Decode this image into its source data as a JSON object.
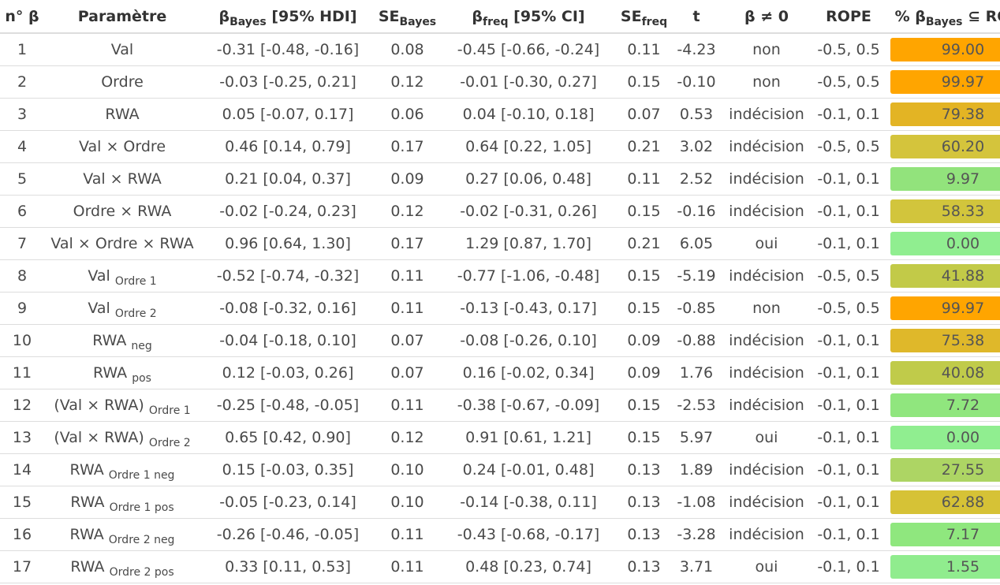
{
  "header": {
    "n": "n° β",
    "param": "Paramètre",
    "beta_bayes": {
      "main": "β",
      "sub": "Bayes",
      "rest": " [95% HDI]"
    },
    "se_bayes": {
      "main": "SE",
      "sub": "Bayes"
    },
    "beta_freq": {
      "main": "β",
      "sub": "freq",
      "rest": " [95% CI]"
    },
    "se_freq": {
      "main": "SE",
      "sub": "freq"
    },
    "t": "t",
    "diff": "β ≠ 0",
    "rope": "ROPE",
    "pct": {
      "pre": "% β",
      "sub": "Bayes",
      "rest": " ⊆ ROPE"
    }
  },
  "rows": [
    {
      "n": "1",
      "param": "Val",
      "psub": "",
      "beta_bayes": "-0.31 [-0.48, -0.16]",
      "se_bayes": "0.08",
      "beta_freq": "-0.45 [-0.66, -0.24]",
      "se_freq": "0.11",
      "t": "-4.23",
      "diff": "non",
      "rope": "-0.5, 0.5",
      "pct": "99.00",
      "color": "#ffa500"
    },
    {
      "n": "2",
      "param": "Ordre",
      "psub": "",
      "beta_bayes": "-0.03 [-0.25, 0.21]",
      "se_bayes": "0.12",
      "beta_freq": "-0.01 [-0.30, 0.27]",
      "se_freq": "0.15",
      "t": "-0.10",
      "diff": "non",
      "rope": "-0.5, 0.5",
      "pct": "99.97",
      "color": "#ffa500"
    },
    {
      "n": "3",
      "param": "RWA",
      "psub": "",
      "beta_bayes": "0.05 [-0.07, 0.17]",
      "se_bayes": "0.06",
      "beta_freq": "0.04 [-0.10, 0.18]",
      "se_freq": "0.07",
      "t": "0.53",
      "diff": "indécision",
      "rope": "-0.1, 0.1",
      "pct": "79.38",
      "color": "#e3b424"
    },
    {
      "n": "4",
      "param": "Val × Ordre",
      "psub": "",
      "beta_bayes": "0.46 [0.14, 0.79]",
      "se_bayes": "0.17",
      "beta_freq": "0.64 [0.22, 1.05]",
      "se_freq": "0.21",
      "t": "3.02",
      "diff": "indécision",
      "rope": "-0.5, 0.5",
      "pct": "60.20",
      "color": "#d4c43c"
    },
    {
      "n": "5",
      "param": "Val × RWA",
      "psub": "",
      "beta_bayes": "0.21 [0.04, 0.37]",
      "se_bayes": "0.09",
      "beta_freq": "0.27 [0.06, 0.48]",
      "se_freq": "0.11",
      "t": "2.52",
      "diff": "indécision",
      "rope": "-0.1, 0.1",
      "pct": "9.97",
      "color": "#92e37c"
    },
    {
      "n": "6",
      "param": "Ordre × RWA",
      "psub": "",
      "beta_bayes": "-0.02 [-0.24, 0.23]",
      "se_bayes": "0.12",
      "beta_freq": "-0.02 [-0.31, 0.26]",
      "se_freq": "0.15",
      "t": "-0.16",
      "diff": "indécision",
      "rope": "-0.1, 0.1",
      "pct": "58.33",
      "color": "#d2c53c"
    },
    {
      "n": "7",
      "param": "Val × Ordre × RWA",
      "psub": "",
      "beta_bayes": "0.96 [0.64, 1.30]",
      "se_bayes": "0.17",
      "beta_freq": "1.29 [0.87, 1.70]",
      "se_freq": "0.21",
      "t": "6.05",
      "diff": "oui",
      "rope": "-0.1, 0.1",
      "pct": "0.00",
      "color": "#90ee90"
    },
    {
      "n": "8",
      "param": "Val",
      "psub": "Ordre 1",
      "beta_bayes": "-0.52 [-0.74, -0.32]",
      "se_bayes": "0.11",
      "beta_freq": "-0.77 [-1.06, -0.48]",
      "se_freq": "0.15",
      "t": "-5.19",
      "diff": "indécision",
      "rope": "-0.5, 0.5",
      "pct": "41.88",
      "color": "#c2ca48"
    },
    {
      "n": "9",
      "param": "Val",
      "psub": "Ordre 2",
      "beta_bayes": "-0.08 [-0.32, 0.16]",
      "se_bayes": "0.11",
      "beta_freq": "-0.13 [-0.43, 0.17]",
      "se_freq": "0.15",
      "t": "-0.85",
      "diff": "non",
      "rope": "-0.5, 0.5",
      "pct": "99.97",
      "color": "#ffa500"
    },
    {
      "n": "10",
      "param": "RWA",
      "psub": "neg",
      "beta_bayes": "-0.04 [-0.18, 0.10]",
      "se_bayes": "0.07",
      "beta_freq": "-0.08 [-0.26, 0.10]",
      "se_freq": "0.09",
      "t": "-0.88",
      "diff": "indécision",
      "rope": "-0.1, 0.1",
      "pct": "75.38",
      "color": "#dfb82a"
    },
    {
      "n": "11",
      "param": "RWA",
      "psub": "pos",
      "beta_bayes": "0.12 [-0.03, 0.26]",
      "se_bayes": "0.07",
      "beta_freq": "0.16 [-0.02, 0.34]",
      "se_freq": "0.09",
      "t": "1.76",
      "diff": "indécision",
      "rope": "-0.1, 0.1",
      "pct": "40.08",
      "color": "#c0cb4a"
    },
    {
      "n": "12",
      "param": "(Val × RWA)",
      "psub": "Ordre 1",
      "beta_bayes": "-0.25 [-0.48, -0.05]",
      "se_bayes": "0.11",
      "beta_freq": "-0.38 [-0.67, -0.09]",
      "se_freq": "0.15",
      "t": "-2.53",
      "diff": "indécision",
      "rope": "-0.1, 0.1",
      "pct": "7.72",
      "color": "#90e67e"
    },
    {
      "n": "13",
      "param": "(Val × RWA)",
      "psub": "Ordre 2",
      "beta_bayes": "0.65 [0.42, 0.90]",
      "se_bayes": "0.12",
      "beta_freq": "0.91 [0.61, 1.21]",
      "se_freq": "0.15",
      "t": "5.97",
      "diff": "oui",
      "rope": "-0.1, 0.1",
      "pct": "0.00",
      "color": "#90ee90"
    },
    {
      "n": "14",
      "param": "RWA",
      "psub": "Ordre 1 neg",
      "beta_bayes": "0.15 [-0.03, 0.35]",
      "se_bayes": "0.10",
      "beta_freq": "0.24 [-0.01, 0.48]",
      "se_freq": "0.13",
      "t": "1.89",
      "diff": "indécision",
      "rope": "-0.1, 0.1",
      "pct": "27.55",
      "color": "#add564"
    },
    {
      "n": "15",
      "param": "RWA",
      "psub": "Ordre 1 pos",
      "beta_bayes": "-0.05 [-0.23, 0.14]",
      "se_bayes": "0.10",
      "beta_freq": "-0.14 [-0.38, 0.11]",
      "se_freq": "0.13",
      "t": "-1.08",
      "diff": "indécision",
      "rope": "-0.1, 0.1",
      "pct": "62.88",
      "color": "#d6c236"
    },
    {
      "n": "16",
      "param": "RWA",
      "psub": "Ordre 2 neg",
      "beta_bayes": "-0.26 [-0.46, -0.05]",
      "se_bayes": "0.11",
      "beta_freq": "-0.43 [-0.68, -0.17]",
      "se_freq": "0.13",
      "t": "-3.28",
      "diff": "indécision",
      "rope": "-0.1, 0.1",
      "pct": "7.17",
      "color": "#8fe77e"
    },
    {
      "n": "17",
      "param": "RWA",
      "psub": "Ordre 2 pos",
      "beta_bayes": "0.33 [0.11, 0.53]",
      "se_bayes": "0.11",
      "beta_freq": "0.48 [0.23, 0.74]",
      "se_freq": "0.13",
      "t": "3.71",
      "diff": "oui",
      "rope": "-0.1, 0.1",
      "pct": "1.55",
      "color": "#90ec8e"
    }
  ]
}
